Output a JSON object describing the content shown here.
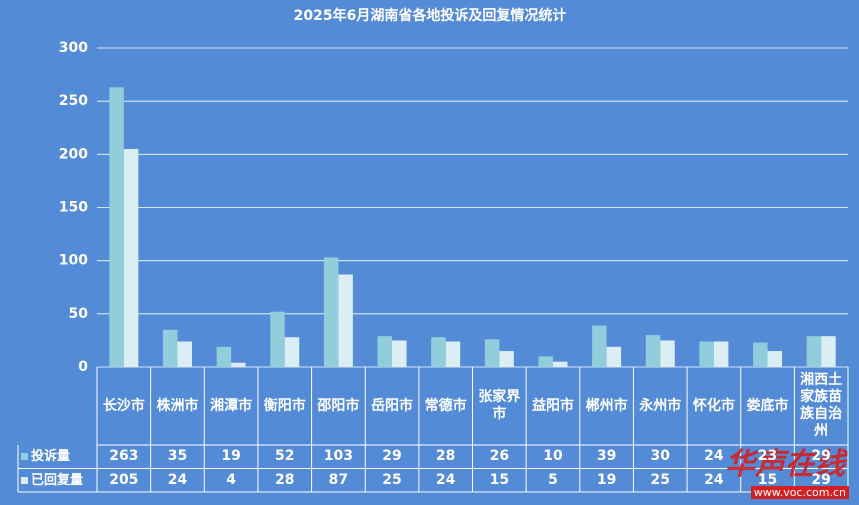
{
  "chart_data": {
    "type": "bar",
    "title": "2025年6月湖南省各地投诉及回复情况统计",
    "categories": [
      "长沙市",
      "株洲市",
      "湘潭市",
      "衡阳市",
      "邵阳市",
      "岳阳市",
      "常德市",
      "张家界市",
      "益阳市",
      "郴州市",
      "永州市",
      "怀化市",
      "娄底市",
      "湘西土家族苗族自治州"
    ],
    "series": [
      {
        "name": "投诉量",
        "color": "#92cddc",
        "values": [
          263,
          35,
          19,
          52,
          103,
          29,
          28,
          26,
          10,
          39,
          30,
          24,
          23,
          29
        ]
      },
      {
        "name": "已回复量",
        "color": "#dbeef3",
        "values": [
          205,
          24,
          4,
          28,
          87,
          25,
          24,
          15,
          5,
          19,
          25,
          24,
          15,
          29
        ]
      }
    ],
    "ylim": [
      0,
      300
    ],
    "yticks": [
      0,
      50,
      100,
      150,
      200,
      250,
      300
    ],
    "grid": true,
    "data_table": true
  },
  "watermark": {
    "brand": "华声在线",
    "url": "www.voc.com.cn"
  }
}
